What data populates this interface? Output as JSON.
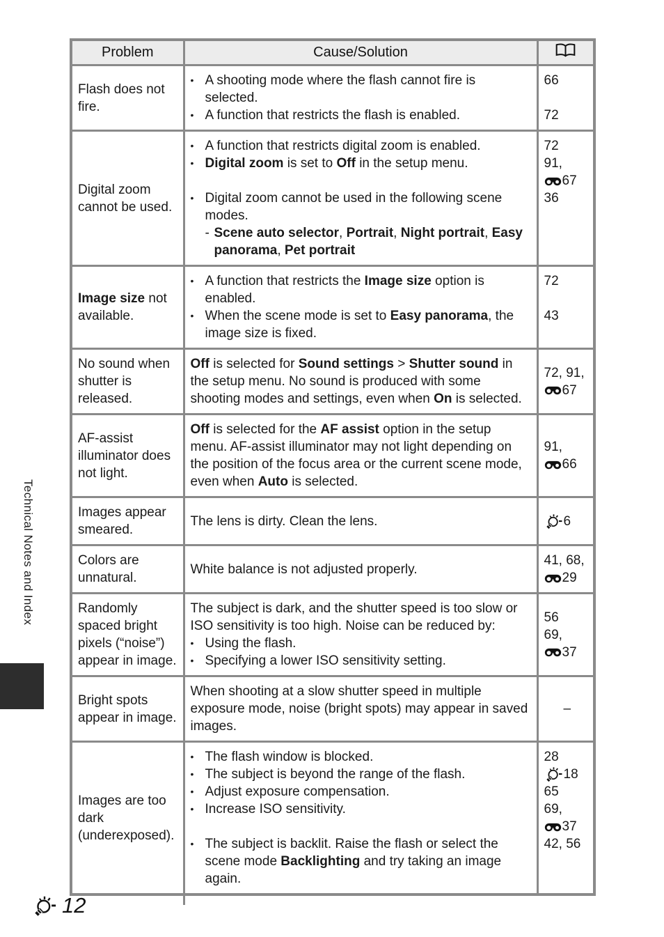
{
  "page": {
    "section_label": "Technical Notes and Index",
    "page_number": "12"
  },
  "colors": {
    "table_border": "#8a8a8a",
    "header_background": "#ececec",
    "section_tab": "#2d2d2d",
    "text": "#1a1a1a"
  },
  "table": {
    "headers": {
      "problem": "Problem",
      "cause": "Cause/Solution",
      "ref_icon": "book-icon"
    },
    "rows": [
      {
        "problem": "Flash does not fire.",
        "cause": [
          {
            "type": "bullet",
            "text": "A shooting mode where the flash cannot fire is selected."
          },
          {
            "type": "bullet",
            "text": "A function that restricts the flash is enabled."
          }
        ],
        "refs": [
          {
            "text": "66"
          },
          {
            "spacer": true
          },
          {
            "text": "72"
          }
        ],
        "cause_valign": "top",
        "ref_valign": "top"
      },
      {
        "problem": "Digital zoom cannot be used.",
        "cause": [
          {
            "type": "bullet",
            "text": "A function that restricts digital zoom is enabled."
          },
          {
            "type": "bullet",
            "text": "**Digital zoom** is set to **Off** in the setup menu."
          },
          {
            "type": "gap"
          },
          {
            "type": "bullet",
            "text": "Digital zoom cannot be used in the following scene modes."
          },
          {
            "type": "sub",
            "text": "**Scene auto selector**, **Portrait**, **Night portrait**, **Easy panorama**, **Pet portrait**"
          }
        ],
        "refs": [
          {
            "text": "72"
          },
          {
            "text": "91,"
          },
          {
            "icon": "reference",
            "text": "67"
          },
          {
            "text": "36"
          }
        ],
        "cause_valign": "top",
        "ref_valign": "top"
      },
      {
        "problem": "**Image size** not available.",
        "cause": [
          {
            "type": "bullet",
            "text": "A function that restricts the **Image size** option is enabled."
          },
          {
            "type": "bullet",
            "text": "When the scene mode is set to **Easy panorama**, the image size is fixed."
          }
        ],
        "refs": [
          {
            "text": "72"
          },
          {
            "spacer": true
          },
          {
            "text": "43"
          }
        ],
        "cause_valign": "top",
        "ref_valign": "top"
      },
      {
        "problem": "No sound when shutter is released.",
        "cause": [
          {
            "type": "p",
            "text": "**Off** is selected for **Sound settings** > **Shutter sound** in the setup menu. No sound is produced with some shooting modes and settings, even when **On** is selected."
          }
        ],
        "refs": [
          {
            "text": "72, 91,"
          },
          {
            "icon": "reference",
            "text": "67"
          }
        ],
        "cause_valign": "top",
        "ref_valign": "middle"
      },
      {
        "problem": "AF-assist illuminator does not light.",
        "cause": [
          {
            "type": "p",
            "text": "**Off** is selected for the **AF assist** option in the setup menu. AF-assist illuminator may not light depending on the position of the focus area or the current scene mode, even when **Auto** is selected."
          }
        ],
        "refs": [
          {
            "text": "91,"
          },
          {
            "icon": "reference",
            "text": "66"
          }
        ],
        "cause_valign": "top",
        "ref_valign": "middle"
      },
      {
        "problem": "Images appear smeared.",
        "cause": [
          {
            "type": "p",
            "text": "The lens is dirty. Clean the lens."
          }
        ],
        "refs": [
          {
            "icon": "lamp",
            "text": "6"
          }
        ],
        "cause_valign": "middle",
        "ref_valign": "middle"
      },
      {
        "problem": "Colors are unnatural.",
        "cause": [
          {
            "type": "p",
            "text": "White balance is not adjusted properly."
          }
        ],
        "refs": [
          {
            "text": "41, 68,"
          },
          {
            "icon": "reference",
            "text": "29"
          }
        ],
        "cause_valign": "middle",
        "ref_valign": "middle"
      },
      {
        "problem": "Randomly spaced bright pixels (“noise”) appear in image.",
        "cause": [
          {
            "type": "p",
            "text": "The subject is dark, and the shutter speed is too slow or ISO sensitivity is too high. Noise can be reduced by:"
          },
          {
            "type": "bullet",
            "text": "Using the flash."
          },
          {
            "type": "bullet",
            "text": "Specifying a lower ISO sensitivity setting."
          }
        ],
        "refs": [
          {
            "text": "56"
          },
          {
            "text": "69,"
          },
          {
            "icon": "reference",
            "text": "37"
          }
        ],
        "cause_valign": "top",
        "ref_valign": "middle"
      },
      {
        "problem": "Bright spots appear in image.",
        "cause": [
          {
            "type": "p",
            "text": "When shooting at a slow shutter speed in multiple exposure mode, noise (bright spots) may appear in saved images."
          }
        ],
        "refs": [
          {
            "text": "–",
            "center": true
          }
        ],
        "cause_valign": "top",
        "ref_valign": "middle"
      },
      {
        "problem": "Images are too dark (underexposed).",
        "cause": [
          {
            "type": "bullet",
            "text": "The flash window is blocked."
          },
          {
            "type": "bullet",
            "text": "The subject is beyond the range of the flash."
          },
          {
            "type": "bullet",
            "text": "Adjust exposure compensation."
          },
          {
            "type": "bullet",
            "text": "Increase ISO sensitivity."
          },
          {
            "type": "gap"
          },
          {
            "type": "bullet",
            "text": "The subject is backlit. Raise the flash or select the scene mode **Backlighting** and try taking an image again."
          }
        ],
        "refs": [
          {
            "text": "28"
          },
          {
            "icon": "lamp",
            "text": "18"
          },
          {
            "text": "65"
          },
          {
            "text": "69,"
          },
          {
            "icon": "reference",
            "text": "37"
          },
          {
            "text": "42, 56"
          }
        ],
        "cause_valign": "top",
        "ref_valign": "top"
      }
    ]
  }
}
